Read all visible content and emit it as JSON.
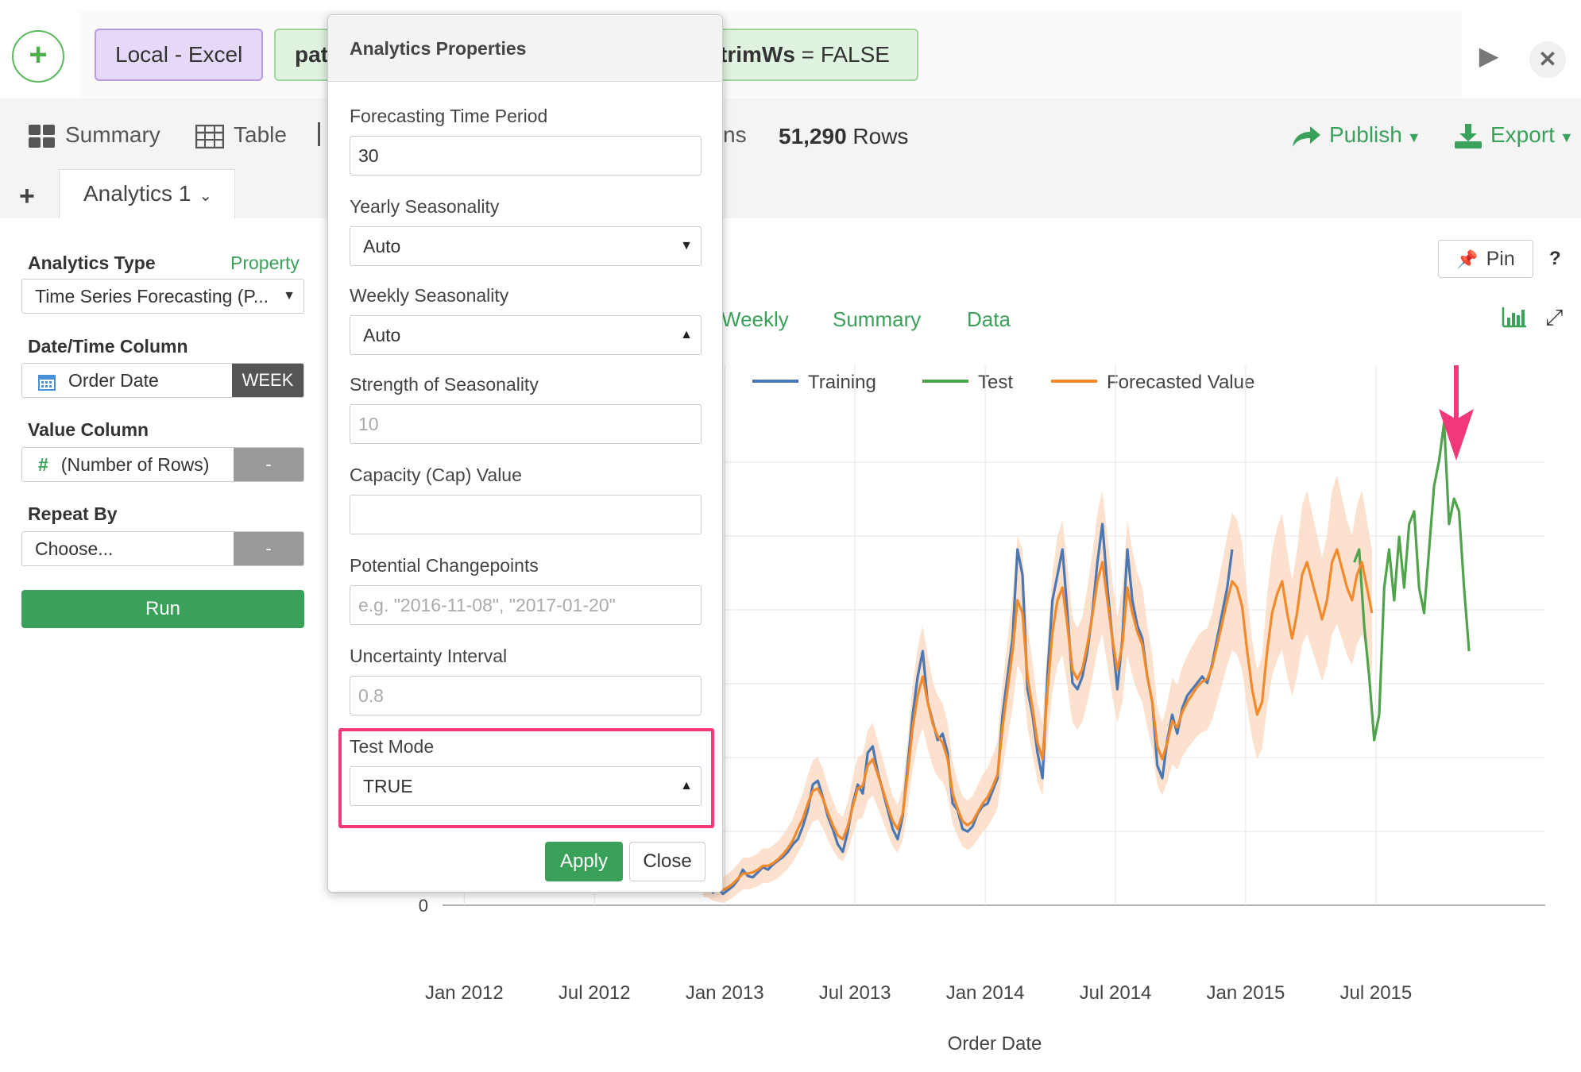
{
  "command_bar": {
    "add_symbol": "+",
    "source_token": "Local - Excel",
    "path_token": "pat",
    "trim_token_key": "trimWs",
    "trim_token_value": " = FALSE"
  },
  "view_tabs": {
    "summary": "Summary",
    "table": "Table",
    "columns_partial": "ns",
    "rows_count": "51,290",
    "rows_label": " Rows",
    "publish": "Publish",
    "export": "Export"
  },
  "analytics_tab": {
    "add_symbol": "+",
    "label": "Analytics 1"
  },
  "left_panel": {
    "analytics_type_label": "Analytics Type",
    "property_link": "Property",
    "analytics_type_value": "Time Series Forecasting (P...",
    "date_column_label": "Date/Time Column",
    "date_column_value": "Order Date",
    "date_unit": "WEEK",
    "value_column_label": "Value Column",
    "value_column_value": "(Number of Rows)",
    "value_dash": "-",
    "repeat_by_label": "Repeat By",
    "repeat_by_placeholder": "Choose...",
    "repeat_dash": "-",
    "run_label": "Run"
  },
  "chart_header": {
    "pin_label": "Pin",
    "help": "?",
    "tabs": [
      "Weekly",
      "Summary",
      "Data"
    ]
  },
  "modal": {
    "title": "Analytics Properties",
    "forecast_period_label": "Forecasting Time Period",
    "forecast_period_value": "30",
    "yearly_label": "Yearly Seasonality",
    "yearly_value": "Auto",
    "weekly_label": "Weekly Seasonality",
    "weekly_value": "Auto",
    "strength_label": "Strength of Seasonality",
    "strength_placeholder": "10",
    "cap_label": "Capacity (Cap) Value",
    "cap_value": "",
    "changepoints_label": "Potential Changepoints",
    "changepoints_placeholder": "e.g. \"2016-11-08\", \"2017-01-20\"",
    "uncertainty_label": "Uncertainty Interval",
    "uncertainty_placeholder": "0.8",
    "test_mode_label": "Test Mode",
    "test_mode_value": "TRUE",
    "apply_label": "Apply",
    "close_label": "Close"
  },
  "colors": {
    "accent_green": "#3aa15a",
    "highlight_pink": "#f0387a",
    "training": "#4a78b4",
    "test": "#4fa34a",
    "forecast": "#f28a2c",
    "band": "#fbd9c2"
  },
  "chart_data": {
    "type": "line",
    "title": "",
    "xlabel": "Order Date",
    "ylabel": "",
    "x_tick_labels": [
      "Jan 2012",
      "Jul 2012",
      "Jan 2013",
      "Jul 2013",
      "Jan 2014",
      "Jul 2014",
      "Jan 2015",
      "Jul 2015"
    ],
    "y_tick_labels": [
      "0"
    ],
    "legend": [
      "Training",
      "Test",
      "Forecasted Value"
    ],
    "legend_position": "top",
    "grid": true,
    "series": [
      {
        "name": "Training",
        "x_start": "2012-12",
        "values": [
          15,
          18,
          10,
          13,
          9,
          12,
          15,
          20,
          28,
          23,
          22,
          26,
          30,
          28,
          32,
          35,
          38,
          42,
          48,
          52,
          62,
          75,
          95,
          98,
          85,
          70,
          60,
          48,
          42,
          58,
          80,
          95,
          88,
          120,
          125,
          105,
          90,
          75,
          60,
          52,
          70,
          110,
          150,
          180,
          200,
          160,
          145,
          130,
          135,
          120,
          80,
          75,
          60,
          58,
          62,
          72,
          78,
          80,
          90,
          100,
          150,
          180,
          210,
          280,
          260,
          170,
          150,
          120,
          100,
          180,
          240,
          260,
          280,
          230,
          175,
          170,
          180,
          200,
          230,
          270,
          300,
          250,
          210,
          170,
          210,
          280,
          240,
          220,
          210,
          180,
          160,
          110,
          100,
          130,
          150,
          135,
          155,
          165,
          170,
          175,
          180,
          175,
          190,
          210,
          230,
          250,
          280
        ]
      },
      {
        "name": "Test",
        "x_start": "2015-06",
        "values": [
          270,
          280,
          220,
          180,
          130,
          150,
          250,
          280,
          240,
          290,
          250,
          300,
          310,
          250,
          230,
          280,
          330,
          350,
          380,
          300,
          320,
          310,
          250,
          200
        ]
      },
      {
        "name": "Forecasted Value",
        "x_start": "2012-12",
        "values": [
          18,
          17,
          14,
          13,
          12,
          14,
          17,
          21,
          25,
          25,
          26,
          28,
          31,
          31,
          33,
          36,
          40,
          45,
          51,
          60,
          68,
          80,
          90,
          92,
          84,
          73,
          63,
          55,
          52,
          62,
          78,
          92,
          94,
          110,
          115,
          103,
          91,
          78,
          66,
          60,
          72,
          104,
          140,
          165,
          180,
          160,
          143,
          133,
          128,
          115,
          88,
          76,
          66,
          63,
          66,
          73,
          80,
          85,
          93,
          103,
          140,
          170,
          200,
          240,
          230,
          180,
          155,
          128,
          115,
          168,
          215,
          240,
          250,
          220,
          185,
          178,
          186,
          205,
          228,
          255,
          270,
          240,
          210,
          185,
          205,
          250,
          230,
          215,
          205,
          180,
          160,
          125,
          115,
          128,
          145,
          140,
          152,
          160,
          166,
          172,
          176,
          178,
          188,
          205,
          222,
          240,
          255,
          250,
          235,
          200,
          170,
          150,
          160,
          200,
          230,
          245,
          255,
          230,
          210,
          230,
          260,
          270,
          255,
          240,
          225,
          240,
          270,
          280,
          265,
          250,
          240,
          260,
          270,
          250,
          230
        ]
      }
    ]
  }
}
